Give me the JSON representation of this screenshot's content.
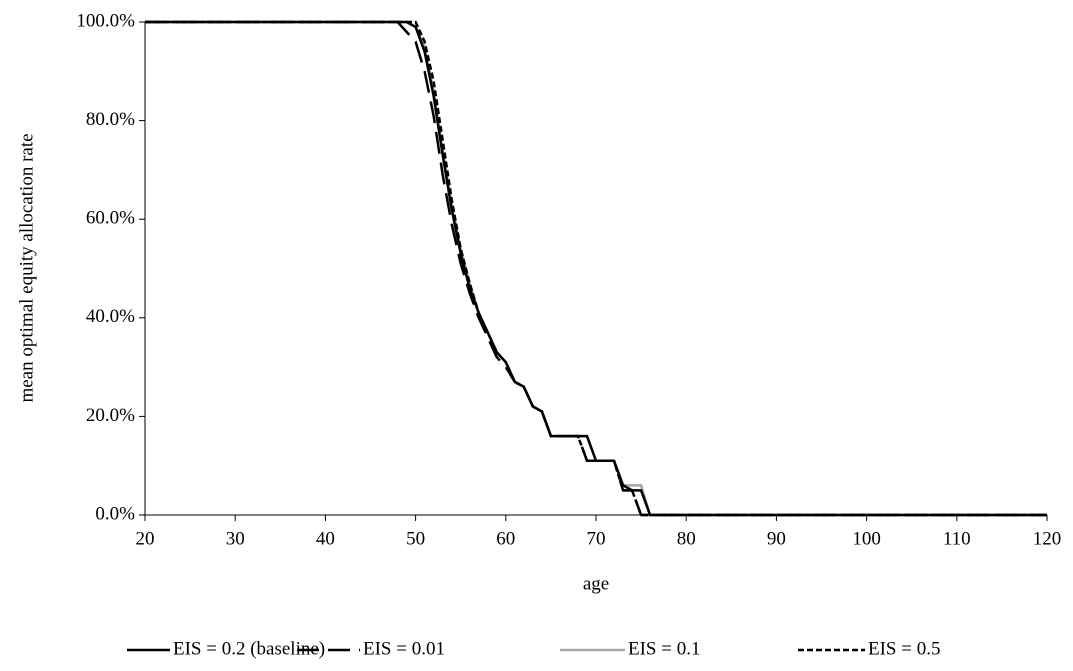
{
  "chart_data": {
    "type": "line",
    "x_label": "age",
    "y_label": "mean optimal equity allocation rate",
    "x": [
      20,
      48,
      49,
      50,
      51,
      52,
      53,
      54,
      55,
      56,
      57,
      58,
      59,
      60,
      61,
      62,
      63,
      64,
      65,
      66,
      67,
      68,
      69,
      70,
      71,
      72,
      73,
      74,
      75,
      76,
      77,
      120
    ],
    "series": [
      {
        "name": "EIS = 0.2 (baseline)",
        "color": "#000000",
        "line_style": "solid",
        "values": [
          100,
          100,
          100,
          99,
          94,
          85,
          73,
          62,
          53,
          46,
          41,
          37,
          33,
          31,
          27,
          26,
          22,
          21,
          16,
          16,
          16,
          16,
          16,
          11,
          11,
          11,
          6,
          5,
          5,
          0,
          0,
          0
        ]
      },
      {
        "name": "EIS = 0.01",
        "color": "#000000",
        "line_style": "long-dash",
        "values": [
          100,
          100,
          98,
          96,
          90,
          81,
          69,
          59,
          51,
          45,
          40,
          36,
          32,
          30,
          27,
          26,
          22,
          21,
          16,
          16,
          16,
          16,
          11,
          11,
          11,
          11,
          5,
          5,
          0,
          0,
          0,
          0
        ]
      },
      {
        "name": "EIS = 0.1",
        "color": "#a6a6a6",
        "line_style": "solid",
        "values": [
          100,
          100,
          100,
          99,
          95,
          86,
          74,
          63,
          54,
          47,
          41,
          37,
          33,
          31,
          27,
          26,
          22,
          21,
          16,
          16,
          16,
          16,
          16,
          11,
          11,
          11,
          6,
          6,
          6,
          0,
          0,
          0
        ]
      },
      {
        "name": "EIS = 0.5",
        "color": "#000000",
        "line_style": "short-dash",
        "values": [
          100,
          100,
          100,
          100,
          96,
          88,
          76,
          64,
          54,
          47,
          41,
          37,
          33,
          31,
          27,
          26,
          22,
          21,
          16,
          16,
          16,
          16,
          11,
          11,
          11,
          11,
          5,
          5,
          0,
          0,
          0,
          0
        ]
      }
    ],
    "xlim": [
      20,
      120
    ],
    "xticks": [
      20,
      30,
      40,
      50,
      60,
      70,
      80,
      90,
      100,
      110,
      120
    ],
    "ylim": [
      0,
      100
    ],
    "yticks": [
      {
        "value": 0,
        "label": "0.0%"
      },
      {
        "value": 20,
        "label": "20.0%"
      },
      {
        "value": 40,
        "label": "40.0%"
      },
      {
        "value": 60,
        "label": "60.0%"
      },
      {
        "value": 80,
        "label": "80.0%"
      },
      {
        "value": 100,
        "label": "100.0%"
      }
    ],
    "grid": false,
    "legend": "bottom"
  }
}
